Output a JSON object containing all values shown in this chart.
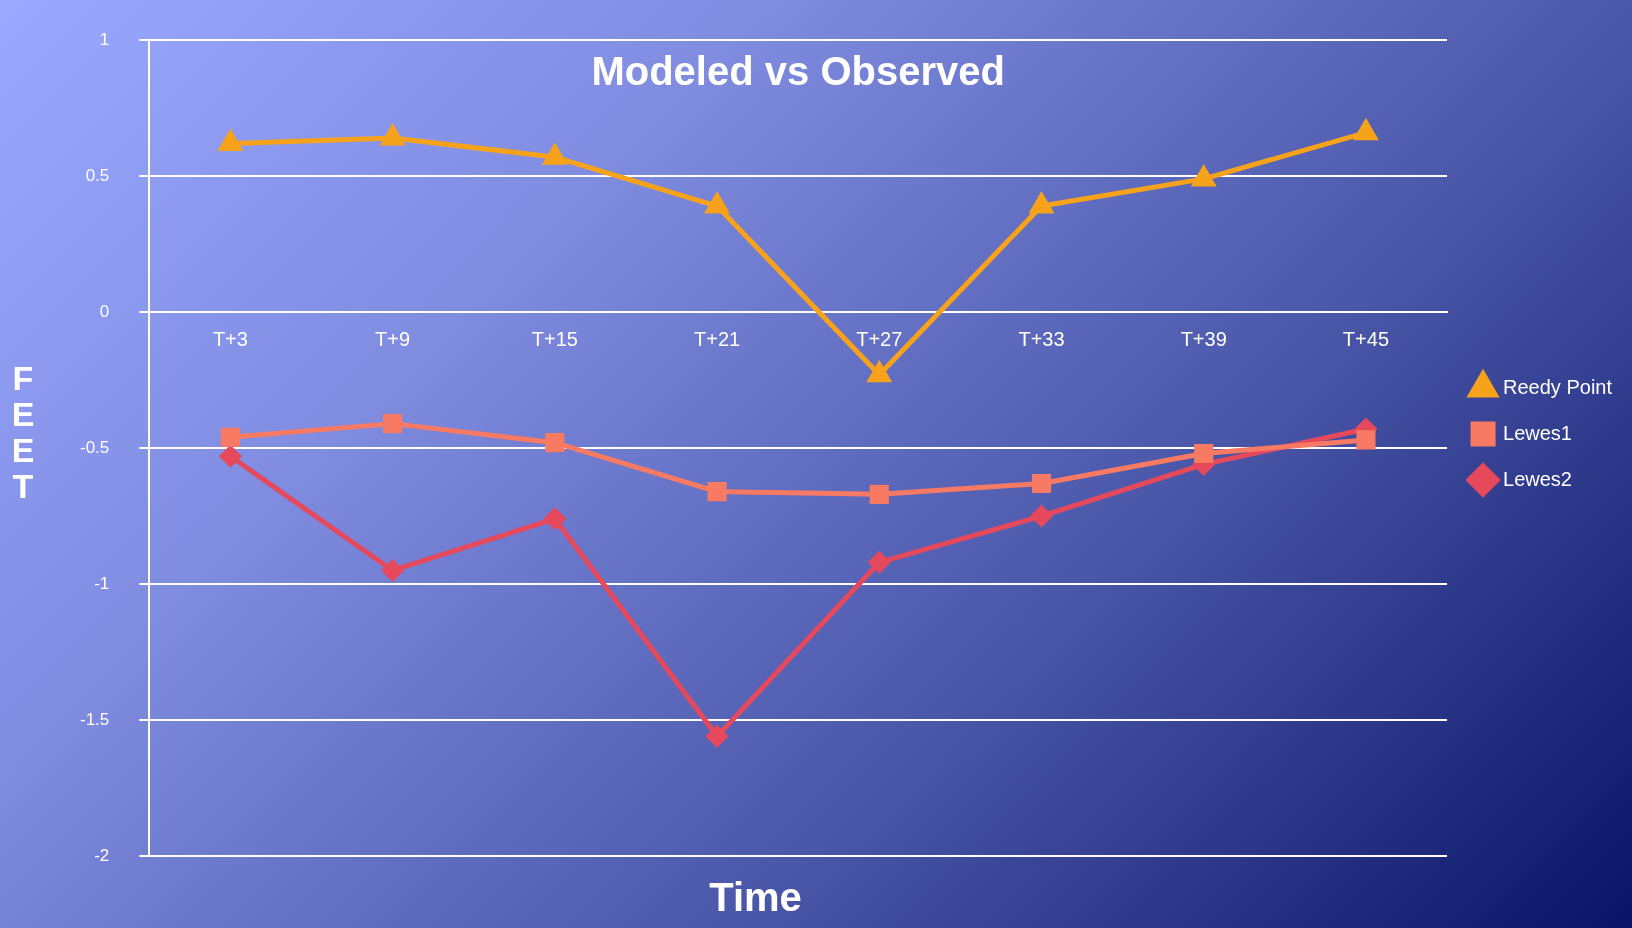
{
  "chart_data": {
    "type": "line",
    "title": "Modeled vs Observed",
    "xlabel": "Time",
    "ylabel": "FEET",
    "categories": [
      "T+3",
      "T+9",
      "T+15",
      "T+21",
      "T+27",
      "T+33",
      "T+39",
      "T+45"
    ],
    "series": [
      {
        "name": "Reedy Point",
        "color": "#f7a21b",
        "marker": "triangle",
        "values": [
          0.62,
          0.64,
          0.57,
          0.39,
          -0.23,
          0.39,
          0.49,
          0.66
        ]
      },
      {
        "name": "Lewes1",
        "color": "#f87a63",
        "marker": "square",
        "values": [
          -0.46,
          -0.41,
          -0.48,
          -0.66,
          -0.67,
          -0.63,
          -0.52,
          -0.47
        ]
      },
      {
        "name": "Lewes2",
        "color": "#e6495c",
        "marker": "diamond",
        "values": [
          -0.53,
          -0.95,
          -0.76,
          -1.56,
          -0.92,
          -0.75,
          -0.56,
          -0.43
        ]
      }
    ],
    "ylim": [
      -2,
      1
    ],
    "yticks": [
      -2,
      -1.5,
      -1,
      -0.5,
      0,
      0.5,
      1
    ],
    "grid": "y",
    "legend": "right",
    "line_style": "solid"
  }
}
